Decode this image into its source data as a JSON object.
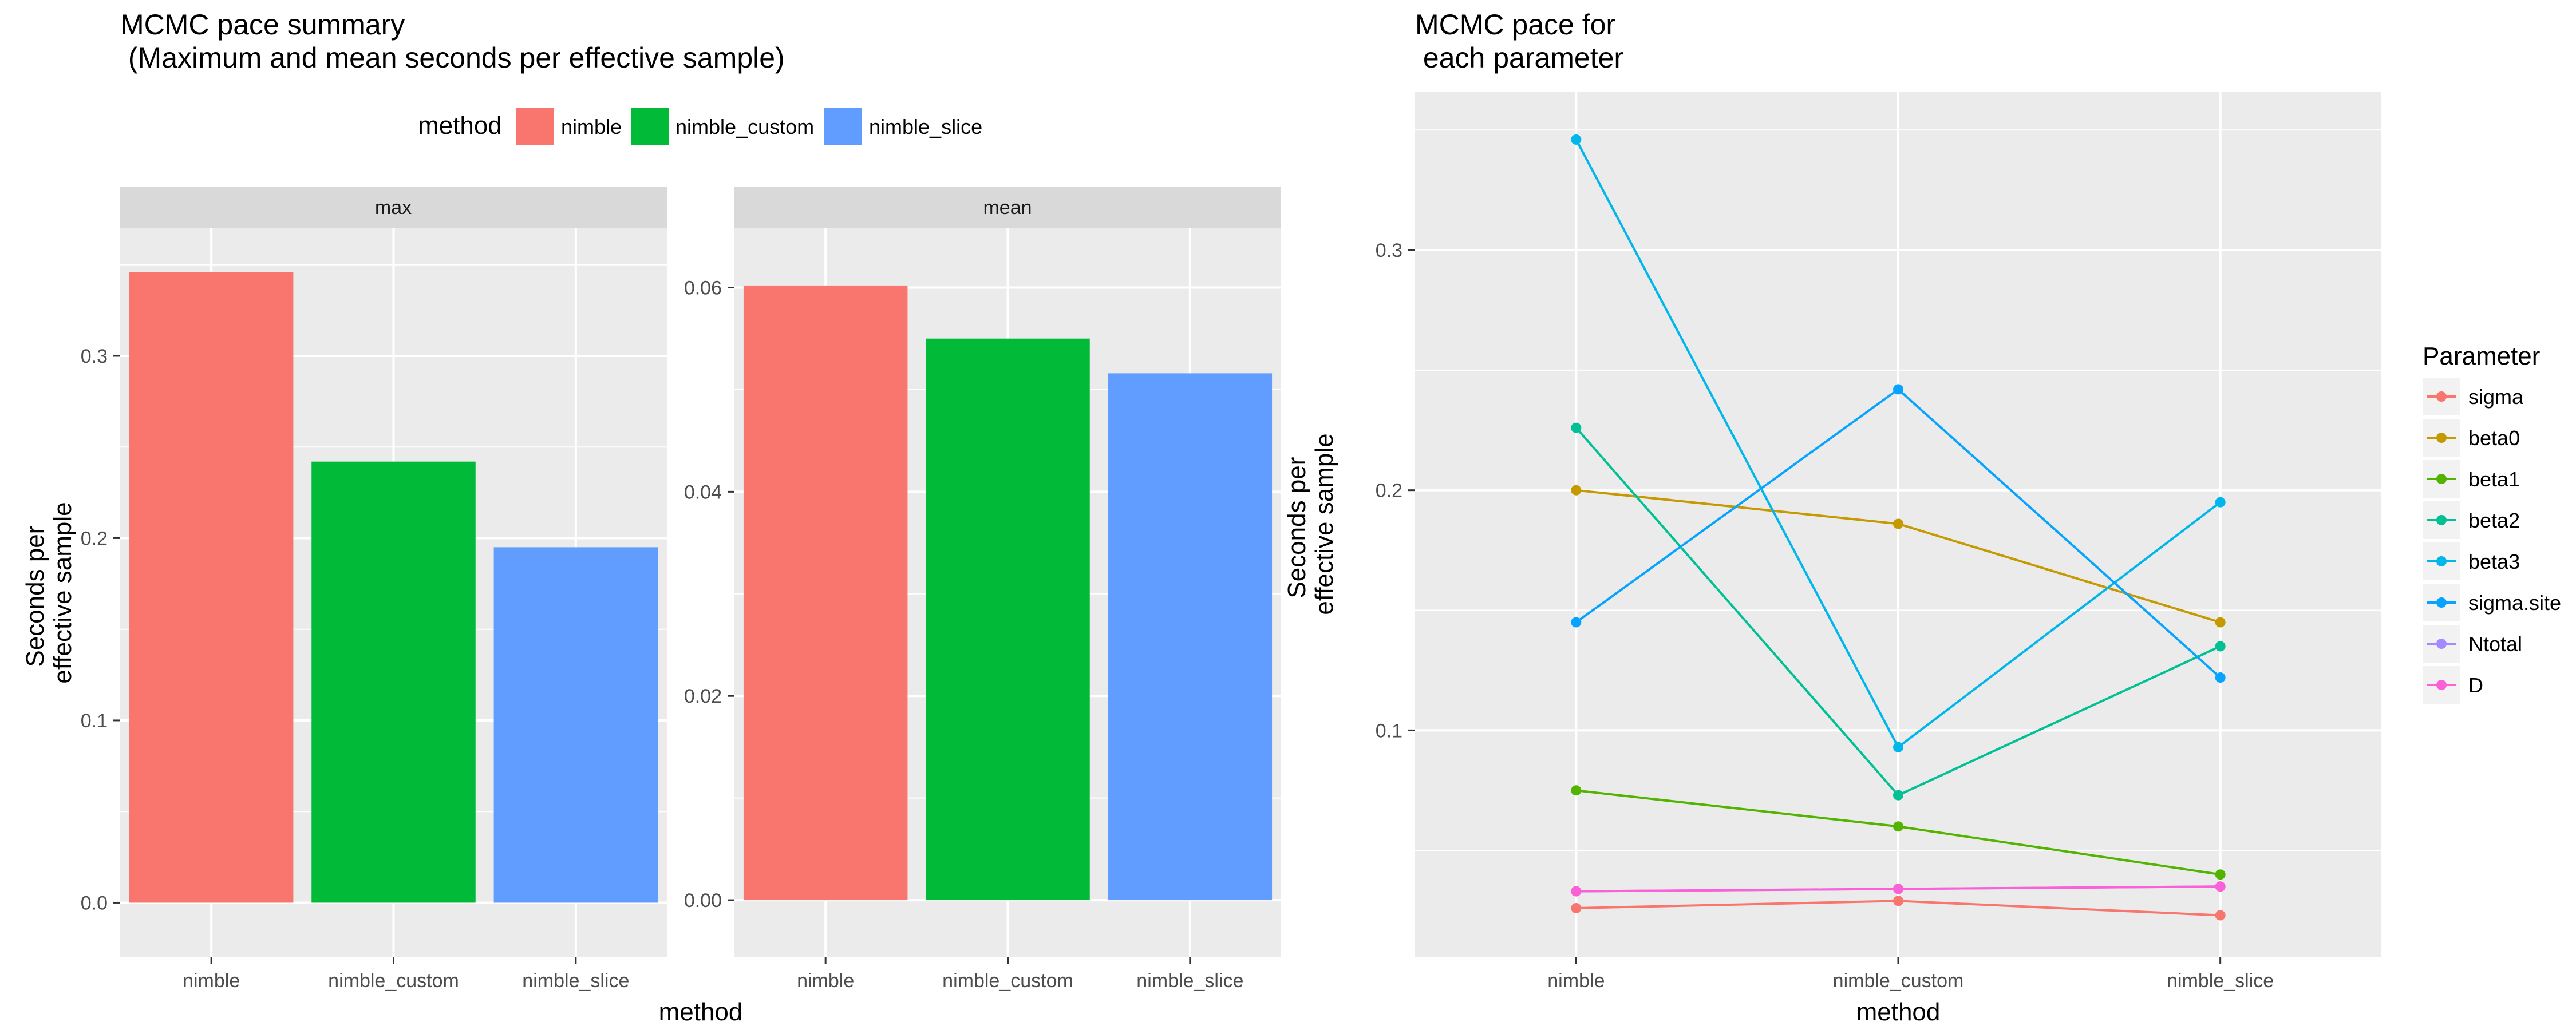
{
  "chart_data": [
    {
      "type": "bar",
      "title": "MCMC pace summary\n (Maximum and mean seconds per effective sample)",
      "xlabel": "method",
      "ylabel": "Seconds per\neffective sample",
      "legend": {
        "title": "method",
        "position": "top",
        "entries": [
          {
            "name": "nimble",
            "color": "#F8766D"
          },
          {
            "name": "nimble_custom",
            "color": "#00BA38"
          },
          {
            "name": "nimble_slice",
            "color": "#619CFF"
          }
        ]
      },
      "grid": true,
      "panels": [
        {
          "strip": "max",
          "categories": [
            "nimble",
            "nimble_custom",
            "nimble_slice"
          ],
          "values": [
            0.346,
            0.242,
            0.195
          ],
          "ylim": [
            -0.03,
            0.37
          ],
          "yticks": [
            0.0,
            0.1,
            0.2,
            0.3
          ],
          "ytick_labels": [
            "0.0",
            "0.1",
            "0.2",
            "0.3"
          ]
        },
        {
          "strip": "mean",
          "categories": [
            "nimble",
            "nimble_custom",
            "nimble_slice"
          ],
          "values": [
            0.0602,
            0.055,
            0.0516
          ],
          "ylim": [
            -0.0056,
            0.0658
          ],
          "yticks": [
            0.0,
            0.02,
            0.04,
            0.06
          ],
          "ytick_labels": [
            "0.00",
            "0.02",
            "0.04",
            "0.06"
          ]
        }
      ]
    },
    {
      "type": "line",
      "title": "MCMC pace for\n each parameter",
      "xlabel": "method",
      "ylabel": "Seconds per\neffective sample",
      "categories": [
        "nimble",
        "nimble_custom",
        "nimble_slice"
      ],
      "ylim": [
        0.0055,
        0.366
      ],
      "yticks": [
        0.1,
        0.2,
        0.3
      ],
      "ytick_labels": [
        "0.1",
        "0.2",
        "0.3"
      ],
      "grid": true,
      "legend": {
        "title": "Parameter",
        "position": "right"
      },
      "series": [
        {
          "name": "sigma",
          "color": "#F8766D",
          "values": [
            0.026,
            0.029,
            0.023
          ]
        },
        {
          "name": "beta0",
          "color": "#C49A00",
          "values": [
            0.2,
            0.186,
            0.145
          ]
        },
        {
          "name": "beta1",
          "color": "#53B400",
          "values": [
            0.075,
            0.06,
            0.04
          ]
        },
        {
          "name": "beta2",
          "color": "#00C094",
          "values": [
            0.226,
            0.073,
            0.135
          ]
        },
        {
          "name": "beta3",
          "color": "#00B6EB",
          "values": [
            0.346,
            0.093,
            0.195
          ]
        },
        {
          "name": "sigma.site",
          "color": "#06A4FF",
          "values": [
            0.145,
            0.242,
            0.122
          ]
        },
        {
          "name": "Ntotal",
          "color": "#A58AFF",
          "values": [
            0.033,
            0.034,
            0.035
          ]
        },
        {
          "name": "D",
          "color": "#FB61D7",
          "values": [
            0.033,
            0.034,
            0.035
          ]
        }
      ]
    }
  ]
}
